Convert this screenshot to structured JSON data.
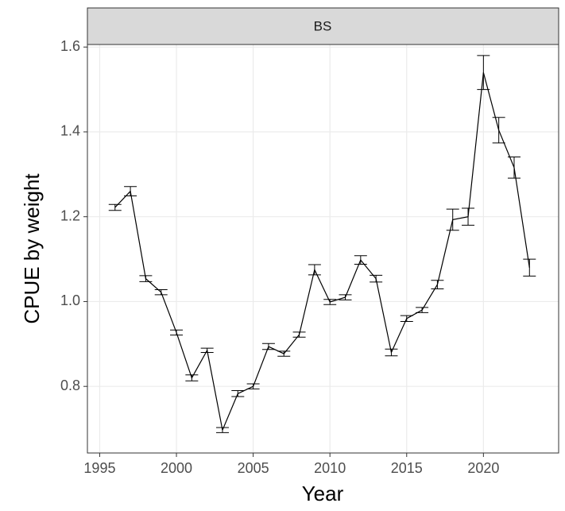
{
  "chart_data": {
    "type": "line",
    "facet_label": "BS",
    "xlabel": "Year",
    "ylabel": "CPUE by weight",
    "x": [
      1996,
      1997,
      1998,
      1999,
      2000,
      2001,
      2002,
      2003,
      2004,
      2005,
      2006,
      2007,
      2008,
      2009,
      2010,
      2011,
      2012,
      2013,
      2014,
      2015,
      2016,
      2017,
      2018,
      2019,
      2020,
      2021,
      2022,
      2023
    ],
    "series": [
      {
        "color": "#000000",
        "values": [
          1.222,
          1.26,
          1.054,
          1.022,
          0.927,
          0.82,
          0.885,
          0.697,
          0.783,
          0.8,
          0.894,
          0.877,
          0.922,
          1.075,
          0.999,
          1.01,
          1.098,
          1.054,
          0.88,
          0.96,
          0.98,
          1.04,
          1.193,
          1.2,
          1.54,
          1.404,
          1.316,
          1.08
        ],
        "errors": [
          0.007,
          0.011,
          0.007,
          0.006,
          0.006,
          0.007,
          0.005,
          0.006,
          0.007,
          0.006,
          0.007,
          0.006,
          0.006,
          0.012,
          0.006,
          0.006,
          0.01,
          0.008,
          0.008,
          0.007,
          0.006,
          0.01,
          0.025,
          0.02,
          0.04,
          0.03,
          0.025,
          0.02
        ]
      }
    ],
    "xlim": [
      1994.2,
      2024.9
    ],
    "xticks": [
      1995,
      2000,
      2005,
      2010,
      2015,
      2020
    ],
    "ylim": [
      0.643,
      1.606
    ],
    "yticks": [
      0.8,
      {
        "value": 1,
        "label": "1.0"
      },
      1.2,
      1.4,
      1.6
    ],
    "grid": true
  }
}
